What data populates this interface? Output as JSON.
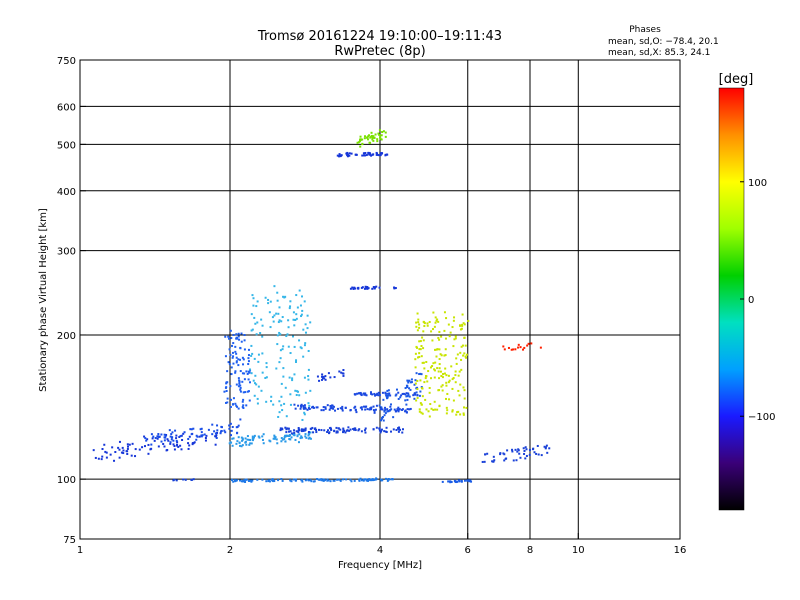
{
  "chart_data": {
    "type": "scatter",
    "title": "Tromsø 20161224 19:10:00–19:11:43",
    "subtitle": "RwPretec (8p)",
    "xlabel": "Frequency [MHz]",
    "ylabel": "Stationary phase Virtual Height [km]",
    "x_scale": "log",
    "y_scale": "log",
    "xlim": [
      1,
      16
    ],
    "ylim": [
      75,
      750
    ],
    "x_ticks": [
      1,
      2,
      4,
      6,
      8,
      10,
      16
    ],
    "y_ticks": [
      75,
      100,
      200,
      300,
      400,
      500,
      600,
      750
    ],
    "grid": true,
    "stats": {
      "heading": "Phases",
      "line1": "mean, sd,O: −78.4, 20.1",
      "line2": "mean, sd,X:  85.3, 24.1"
    },
    "colorbar": {
      "label": "[deg]",
      "ticks": [
        "100",
        "0",
        "−100"
      ],
      "range": [
        -180,
        180
      ],
      "palette": [
        "#000000",
        "#3a0078",
        "#1a1aff",
        "#00a0ff",
        "#00e0c0",
        "#00d000",
        "#a0ff00",
        "#ffff00",
        "#ff9000",
        "#ff0000"
      ]
    },
    "traces": [
      {
        "f0": 1.05,
        "f1": 1.9,
        "h0": 108,
        "h1": 127,
        "n": 90,
        "c": "#1636d8",
        "spread": 3.2
      },
      {
        "f0": 1.35,
        "f1": 2.1,
        "h0": 118,
        "h1": 132,
        "n": 70,
        "c": "#1a4fe8",
        "spread": 2.5
      },
      {
        "f0": 1.5,
        "f1": 1.7,
        "h0": 99,
        "h1": 100,
        "n": 8,
        "c": "#1640d6",
        "spread": 0.8
      },
      {
        "f0": 1.95,
        "f1": 2.2,
        "h0": 140,
        "h1": 205,
        "n": 110,
        "c": "#1f5ff0",
        "spread": 1.2
      },
      {
        "f0": 2.0,
        "f1": 2.9,
        "h0": 118,
        "h1": 125,
        "n": 90,
        "c": "#2a9ae8",
        "spread": 3.0
      },
      {
        "f0": 2.2,
        "f1": 2.9,
        "h0": 135,
        "h1": 245,
        "n": 150,
        "c": "#35b6e8",
        "spread": 7.0
      },
      {
        "f0": 2.0,
        "f1": 4.3,
        "h0": 99,
        "h1": 100,
        "n": 120,
        "c": "#1e78e8",
        "spread": 1.0
      },
      {
        "f0": 2.5,
        "f1": 4.5,
        "h0": 126,
        "h1": 127,
        "n": 110,
        "c": "#1940d8",
        "spread": 2.6
      },
      {
        "f0": 2.7,
        "f1": 4.6,
        "h0": 143,
        "h1": 138,
        "n": 100,
        "c": "#1a48e0",
        "spread": 2.0
      },
      {
        "f0": 3.5,
        "f1": 4.8,
        "h0": 151,
        "h1": 150,
        "n": 50,
        "c": "#1a48e0",
        "spread": 1.5
      },
      {
        "f0": 4.0,
        "f1": 4.9,
        "h0": 130,
        "h1": 170,
        "n": 60,
        "c": "#1c5ae6",
        "spread": 2.5
      },
      {
        "f0": 4.7,
        "f1": 6.0,
        "h0": 135,
        "h1": 220,
        "n": 200,
        "c": "#c8e400",
        "spread": 5.0
      },
      {
        "f0": 3.3,
        "f1": 4.2,
        "h0": 475,
        "h1": 478,
        "n": 50,
        "c": "#1636d8",
        "spread": 1.5
      },
      {
        "f0": 3.6,
        "f1": 4.1,
        "h0": 495,
        "h1": 535,
        "n": 45,
        "c": "#7ae000",
        "spread": 2.5
      },
      {
        "f0": 3.5,
        "f1": 4.3,
        "h0": 250,
        "h1": 252,
        "n": 30,
        "c": "#1636d8",
        "spread": 1.0
      },
      {
        "f0": 5.3,
        "f1": 6.1,
        "h0": 99,
        "h1": 99,
        "n": 25,
        "c": "#1a5ce6",
        "spread": 1.0
      },
      {
        "f0": 6.3,
        "f1": 8.8,
        "h0": 107,
        "h1": 118,
        "n": 50,
        "c": "#1940d8",
        "spread": 2.5
      },
      {
        "f0": 7.0,
        "f1": 8.4,
        "h0": 185,
        "h1": 192,
        "n": 15,
        "c": "#ff2000",
        "spread": 1.0
      },
      {
        "f0": 3.0,
        "f1": 3.4,
        "h0": 160,
        "h1": 170,
        "n": 20,
        "c": "#1a3cd8",
        "spread": 1.5
      }
    ]
  }
}
